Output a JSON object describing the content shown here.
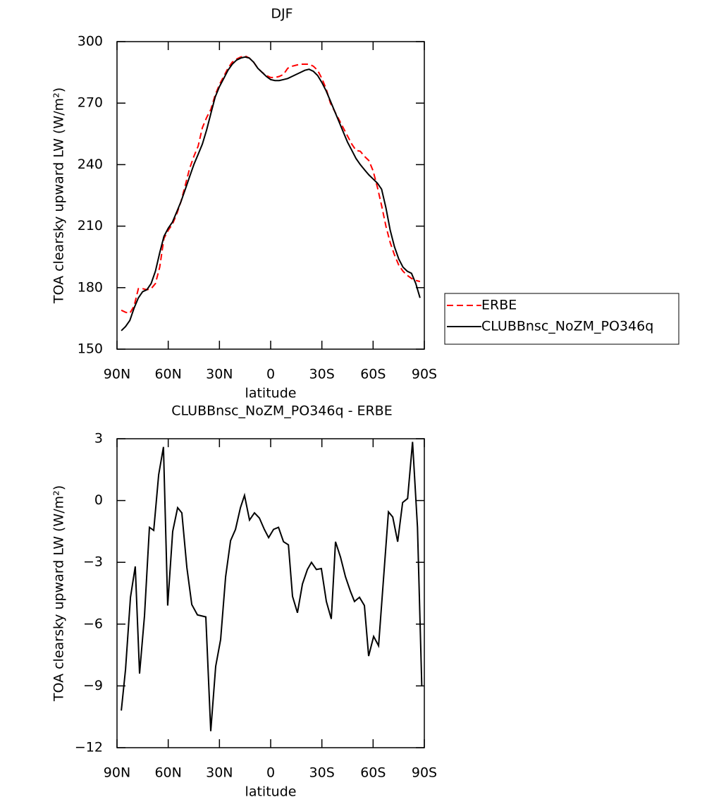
{
  "chart_data": [
    {
      "type": "line",
      "title": "DJF",
      "xlabel": "latitude",
      "ylabel": "TOA clearsky upward LW (W/m²)",
      "x": [
        87.5,
        85,
        82.5,
        80,
        77.5,
        75,
        72.5,
        70,
        67.5,
        65,
        62.5,
        60,
        57.5,
        55,
        52.5,
        50,
        47.5,
        45,
        42.5,
        40,
        37.5,
        35,
        32.5,
        30,
        27.5,
        25,
        22.5,
        20,
        17.5,
        15,
        12.5,
        10,
        7.5,
        5,
        2.5,
        0,
        -2.5,
        -5,
        -7.5,
        -10,
        -12.5,
        -15,
        -17.5,
        -20,
        -22.5,
        -25,
        -27.5,
        -30,
        -32.5,
        -35,
        -37.5,
        -40,
        -42.5,
        -45,
        -47.5,
        -50,
        -52.5,
        -55,
        -57.5,
        -60,
        -62.5,
        -65,
        -67.5,
        -70,
        -72.5,
        -75,
        -77.5,
        -80,
        -82.5,
        -85,
        -87.5
      ],
      "series": [
        {
          "name": "ERBE",
          "color": "#ff0000",
          "dash": true,
          "values": [
            169,
            168,
            167.5,
            171,
            179.5,
            179.5,
            179,
            179.5,
            182,
            190,
            204,
            208,
            211,
            216,
            222,
            230,
            238,
            244,
            249,
            258,
            263,
            267,
            274,
            279,
            283,
            287,
            290,
            291.5,
            292.5,
            293,
            292,
            290,
            287,
            285,
            283.5,
            282.5,
            282.5,
            283,
            284,
            287,
            288,
            288.5,
            289,
            289,
            289,
            288,
            286,
            282,
            277,
            270,
            266,
            262,
            258,
            254,
            250,
            247,
            246.5,
            244,
            242,
            237,
            229,
            220,
            210,
            202,
            196,
            191,
            188,
            186,
            184.5,
            183.5,
            183
          ]
        },
        {
          "name": "CLUBBnsc_NoZM_PO346q",
          "color": "#000000",
          "dash": false,
          "values": [
            159,
            161,
            164,
            170,
            175,
            178,
            179,
            182,
            188,
            197,
            205,
            209,
            212,
            217,
            222,
            228,
            234,
            240,
            245,
            250,
            257,
            265,
            273,
            278,
            282,
            286,
            289,
            291,
            292,
            292.5,
            292,
            290,
            287,
            285,
            283,
            281.5,
            281,
            281,
            281.5,
            282,
            283,
            284,
            285,
            286,
            286.5,
            285.5,
            283.5,
            280,
            276,
            271,
            266,
            261,
            256,
            251,
            247,
            243,
            240,
            237.5,
            235,
            233,
            231,
            228,
            219,
            208,
            200,
            194,
            190,
            188,
            187,
            182,
            175
          ]
        }
      ],
      "xlim": [
        90,
        -90
      ],
      "xticks": [
        {
          "value": 90,
          "label": "90N"
        },
        {
          "value": 60,
          "label": "60N"
        },
        {
          "value": 30,
          "label": "30N"
        },
        0,
        {
          "value": -30,
          "label": "30S"
        },
        {
          "value": -60,
          "label": "60S"
        },
        {
          "value": -90,
          "label": "90S"
        }
      ],
      "ylim": [
        150,
        300
      ],
      "yticks": [
        150,
        180,
        210,
        240,
        270,
        300
      ],
      "legend": "right"
    },
    {
      "type": "line",
      "title": "CLUBBnsc_NoZM_PO346q - ERBE",
      "xlabel": "latitude",
      "ylabel": "TOA clearsky upward LW (W/m²)",
      "x": [
        87.5,
        85,
        82.1,
        79.3,
        76.8,
        73.9,
        71,
        68.5,
        65.6,
        62.8,
        60.3,
        57.4,
        54.5,
        52,
        49.1,
        46.2,
        42.9,
        38,
        35.1,
        32.2,
        29.3,
        26.4,
        23.5,
        20.6,
        17.7,
        15.3,
        12.4,
        9.5,
        6.6,
        3.7,
        1.2,
        -1.7,
        -4.6,
        -7.5,
        -10.4,
        -12.8,
        -15.7,
        -18.6,
        -21.5,
        -23.9,
        -26.8,
        -29.7,
        -32.6,
        -35.5,
        -38,
        -40.9,
        -43.8,
        -46.7,
        -49.1,
        -52,
        -54.9,
        -57.4,
        -60.3,
        -63.2,
        -66.1,
        -69,
        -71.5,
        -74.4,
        -77.3,
        -80.2,
        -83.1,
        -86,
        -88.5
      ],
      "series": [
        {
          "name": "CLUBBnsc_NoZM_PO346q - ERBE",
          "color": "#000000",
          "dash": false,
          "values": [
            -10.2,
            -8.2,
            -4.7,
            -3.2,
            -8.4,
            -5.6,
            -1.3,
            -1.45,
            1.25,
            2.6,
            -5.1,
            -1.5,
            -0.35,
            -0.6,
            -3.25,
            -5.05,
            -5.55,
            -5.65,
            -11.2,
            -8.05,
            -6.75,
            -3.7,
            -1.95,
            -1.4,
            -0.35,
            0.25,
            -0.95,
            -0.6,
            -0.85,
            -1.4,
            -1.8,
            -1.4,
            -1.3,
            -2,
            -2.15,
            -4.65,
            -5.45,
            -4.05,
            -3.35,
            -3,
            -3.35,
            -3.3,
            -4.9,
            -5.75,
            -2,
            -2.75,
            -3.7,
            -4.4,
            -4.9,
            -4.7,
            -5.1,
            -7.55,
            -6.6,
            -7.05,
            -3.8,
            -0.55,
            -0.8,
            -2,
            -0.1,
            0.1,
            2.85,
            -1.3,
            -9.0
          ]
        }
      ],
      "xlim": [
        90,
        -90
      ],
      "xticks": [
        {
          "value": 90,
          "label": "90N"
        },
        {
          "value": 60,
          "label": "60N"
        },
        {
          "value": 30,
          "label": "30N"
        },
        0,
        {
          "value": -30,
          "label": "30S"
        },
        {
          "value": -60,
          "label": "60S"
        },
        {
          "value": -90,
          "label": "90S"
        }
      ],
      "ylim": [
        -12,
        3
      ],
      "yticks": [
        {
          "value": -12,
          "label": "−12"
        },
        {
          "value": -9,
          "label": "−9"
        },
        {
          "value": -6,
          "label": "−6"
        },
        {
          "value": -3,
          "label": "−3"
        },
        0,
        3
      ]
    }
  ]
}
